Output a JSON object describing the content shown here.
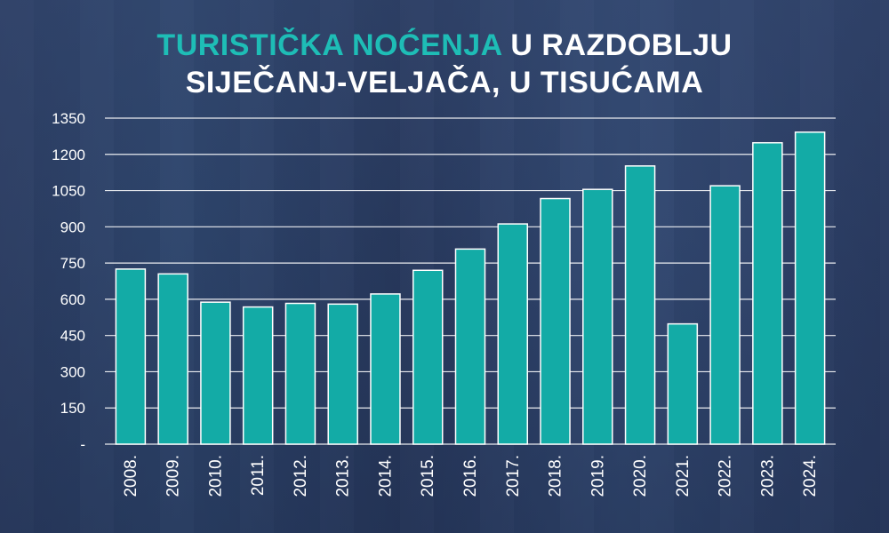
{
  "title": {
    "highlight": "TURISTIČKA NOĆENJA",
    "line1_rest": " U RAZDOBLJU",
    "line2": "SIJEČANJ-VELJAČA, U TISUĆAMA"
  },
  "colors": {
    "bar": "#13aba6",
    "bar_stroke": "#ffffff",
    "title_accent": "#1ebdb6",
    "text": "#ffffff",
    "grid": "#ffffff"
  },
  "chart_data": {
    "type": "bar",
    "title": "TURISTIČKA NOĆENJA U RAZDOBLJU SIJEČANJ-VELJAČA, U TISUĆAMA",
    "categories": [
      "2008.",
      "2009.",
      "2010.",
      "2011.",
      "2012.",
      "2013.",
      "2014.",
      "2015.",
      "2016.",
      "2017.",
      "2018.",
      "2019.",
      "2020.",
      "2021.",
      "2022.",
      "2023.",
      "2024."
    ],
    "values": [
      725,
      705,
      588,
      568,
      583,
      580,
      622,
      720,
      808,
      912,
      1017,
      1055,
      1152,
      498,
      1070,
      1248,
      1292
    ],
    "yticks": [
      "-",
      "150",
      "300",
      "450",
      "600",
      "750",
      "900",
      "1050",
      "1200",
      "1350"
    ],
    "ylim": [
      0,
      1350
    ],
    "grid": true,
    "xlabel": "",
    "ylabel": ""
  }
}
